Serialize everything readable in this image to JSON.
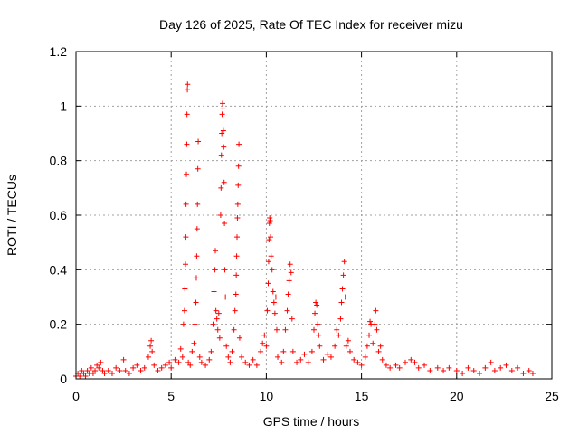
{
  "chart_data": {
    "type": "scatter",
    "title": "Day 126 of 2025, Rate Of TEC Index for receiver mizu",
    "xlabel": "GPS time / hours",
    "ylabel": "ROTI / TECUs",
    "xlim": [
      0,
      25
    ],
    "ylim": [
      0,
      1.2
    ],
    "x_ticks": [
      0,
      5,
      10,
      15,
      20,
      25
    ],
    "x_tick_labels": [
      "0",
      "5",
      "10",
      "15",
      "20",
      "25"
    ],
    "y_ticks": [
      0,
      0.2,
      0.4,
      0.6,
      0.8,
      1.0,
      1.2
    ],
    "y_tick_labels": [
      "0",
      "0.2",
      "0.4",
      "0.6",
      "0.8",
      "1",
      "1.2"
    ],
    "grid": true,
    "marker": "+",
    "marker_color": "#ff0000",
    "series": [
      {
        "points": [
          [
            0.0,
            0.01
          ],
          [
            0.1,
            0.02
          ],
          [
            0.2,
            0.01
          ],
          [
            0.3,
            0.03
          ],
          [
            0.4,
            0.02
          ],
          [
            0.5,
            0.01
          ],
          [
            0.6,
            0.03
          ],
          [
            0.7,
            0.02
          ],
          [
            0.8,
            0.04
          ],
          [
            0.9,
            0.02
          ],
          [
            1.0,
            0.03
          ],
          [
            1.1,
            0.05
          ],
          [
            1.2,
            0.04
          ],
          [
            1.3,
            0.06
          ],
          [
            1.4,
            0.03
          ],
          [
            1.5,
            0.02
          ],
          [
            1.7,
            0.03
          ],
          [
            1.9,
            0.02
          ],
          [
            2.1,
            0.04
          ],
          [
            2.3,
            0.03
          ],
          [
            2.5,
            0.07
          ],
          [
            2.6,
            0.03
          ],
          [
            2.8,
            0.02
          ],
          [
            3.0,
            0.04
          ],
          [
            3.2,
            0.05
          ],
          [
            3.4,
            0.03
          ],
          [
            3.6,
            0.04
          ],
          [
            3.8,
            0.08
          ],
          [
            3.9,
            0.12
          ],
          [
            3.95,
            0.14
          ],
          [
            4.0,
            0.1
          ],
          [
            4.1,
            0.05
          ],
          [
            4.3,
            0.03
          ],
          [
            4.5,
            0.04
          ],
          [
            4.7,
            0.05
          ],
          [
            4.9,
            0.06
          ],
          [
            5.0,
            0.04
          ],
          [
            5.2,
            0.07
          ],
          [
            5.4,
            0.06
          ],
          [
            5.5,
            0.11
          ],
          [
            5.6,
            0.08
          ],
          [
            5.65,
            0.2
          ],
          [
            5.7,
            0.25
          ],
          [
            5.72,
            0.33
          ],
          [
            5.75,
            0.42
          ],
          [
            5.77,
            0.52
          ],
          [
            5.78,
            0.64
          ],
          [
            5.8,
            0.75
          ],
          [
            5.82,
            0.86
          ],
          [
            5.83,
            0.97
          ],
          [
            5.85,
            1.06
          ],
          [
            5.86,
            1.08
          ],
          [
            5.9,
            0.06
          ],
          [
            6.0,
            0.05
          ],
          [
            6.1,
            0.1
          ],
          [
            6.2,
            0.13
          ],
          [
            6.25,
            0.2
          ],
          [
            6.3,
            0.28
          ],
          [
            6.32,
            0.37
          ],
          [
            6.34,
            0.45
          ],
          [
            6.36,
            0.55
          ],
          [
            6.38,
            0.64
          ],
          [
            6.4,
            0.77
          ],
          [
            6.42,
            0.87
          ],
          [
            6.5,
            0.08
          ],
          [
            6.6,
            0.06
          ],
          [
            6.8,
            0.05
          ],
          [
            7.0,
            0.07
          ],
          [
            7.1,
            0.1
          ],
          [
            7.2,
            0.2
          ],
          [
            7.25,
            0.32
          ],
          [
            7.3,
            0.4
          ],
          [
            7.32,
            0.47
          ],
          [
            7.35,
            0.25
          ],
          [
            7.4,
            0.22
          ],
          [
            7.45,
            0.18
          ],
          [
            7.5,
            0.24
          ],
          [
            7.55,
            0.15
          ],
          [
            7.6,
            0.6
          ],
          [
            7.62,
            0.7
          ],
          [
            7.64,
            0.82
          ],
          [
            7.66,
            0.9
          ],
          [
            7.68,
            0.97
          ],
          [
            7.7,
            1.01
          ],
          [
            7.72,
            0.99
          ],
          [
            7.74,
            0.91
          ],
          [
            7.76,
            0.85
          ],
          [
            7.78,
            0.72
          ],
          [
            7.8,
            0.57
          ],
          [
            7.82,
            0.4
          ],
          [
            7.85,
            0.3
          ],
          [
            7.9,
            0.12
          ],
          [
            8.0,
            0.08
          ],
          [
            8.1,
            0.06
          ],
          [
            8.2,
            0.1
          ],
          [
            8.3,
            0.18
          ],
          [
            8.35,
            0.25
          ],
          [
            8.4,
            0.31
          ],
          [
            8.42,
            0.38
          ],
          [
            8.44,
            0.45
          ],
          [
            8.46,
            0.52
          ],
          [
            8.48,
            0.59
          ],
          [
            8.5,
            0.64
          ],
          [
            8.52,
            0.71
          ],
          [
            8.54,
            0.78
          ],
          [
            8.56,
            0.86
          ],
          [
            8.6,
            0.15
          ],
          [
            8.7,
            0.08
          ],
          [
            8.9,
            0.06
          ],
          [
            9.1,
            0.05
          ],
          [
            9.3,
            0.07
          ],
          [
            9.5,
            0.05
          ],
          [
            9.7,
            0.1
          ],
          [
            9.8,
            0.13
          ],
          [
            9.9,
            0.16
          ],
          [
            10.0,
            0.12
          ],
          [
            10.05,
            0.25
          ],
          [
            10.1,
            0.35
          ],
          [
            10.12,
            0.43
          ],
          [
            10.14,
            0.51
          ],
          [
            10.16,
            0.57
          ],
          [
            10.18,
            0.59
          ],
          [
            10.2,
            0.58
          ],
          [
            10.22,
            0.52
          ],
          [
            10.25,
            0.45
          ],
          [
            10.3,
            0.4
          ],
          [
            10.35,
            0.32
          ],
          [
            10.4,
            0.28
          ],
          [
            10.45,
            0.24
          ],
          [
            10.5,
            0.3
          ],
          [
            10.55,
            0.18
          ],
          [
            10.6,
            0.08
          ],
          [
            10.8,
            0.06
          ],
          [
            10.9,
            0.1
          ],
          [
            11.0,
            0.18
          ],
          [
            11.1,
            0.25
          ],
          [
            11.15,
            0.31
          ],
          [
            11.2,
            0.36
          ],
          [
            11.25,
            0.42
          ],
          [
            11.3,
            0.39
          ],
          [
            11.35,
            0.22
          ],
          [
            11.4,
            0.1
          ],
          [
            11.6,
            0.06
          ],
          [
            11.8,
            0.07
          ],
          [
            12.0,
            0.09
          ],
          [
            12.2,
            0.06
          ],
          [
            12.4,
            0.1
          ],
          [
            12.5,
            0.18
          ],
          [
            12.55,
            0.24
          ],
          [
            12.6,
            0.28
          ],
          [
            12.65,
            0.27
          ],
          [
            12.7,
            0.2
          ],
          [
            12.75,
            0.16
          ],
          [
            12.8,
            0.12
          ],
          [
            13.0,
            0.07
          ],
          [
            13.2,
            0.09
          ],
          [
            13.4,
            0.08
          ],
          [
            13.6,
            0.12
          ],
          [
            13.7,
            0.18
          ],
          [
            13.8,
            0.16
          ],
          [
            13.9,
            0.22
          ],
          [
            13.95,
            0.28
          ],
          [
            14.0,
            0.33
          ],
          [
            14.05,
            0.38
          ],
          [
            14.1,
            0.43
          ],
          [
            14.15,
            0.3
          ],
          [
            14.2,
            0.12
          ],
          [
            14.3,
            0.14
          ],
          [
            14.4,
            0.1
          ],
          [
            14.6,
            0.07
          ],
          [
            14.8,
            0.06
          ],
          [
            15.0,
            0.05
          ],
          [
            15.2,
            0.08
          ],
          [
            15.3,
            0.12
          ],
          [
            15.4,
            0.16
          ],
          [
            15.45,
            0.21
          ],
          [
            15.5,
            0.2
          ],
          [
            15.6,
            0.13
          ],
          [
            15.7,
            0.2
          ],
          [
            15.75,
            0.25
          ],
          [
            15.8,
            0.18
          ],
          [
            15.9,
            0.1
          ],
          [
            16.0,
            0.12
          ],
          [
            16.1,
            0.07
          ],
          [
            16.3,
            0.05
          ],
          [
            16.5,
            0.04
          ],
          [
            16.8,
            0.05
          ],
          [
            17.0,
            0.04
          ],
          [
            17.3,
            0.06
          ],
          [
            17.6,
            0.07
          ],
          [
            17.8,
            0.06
          ],
          [
            18.0,
            0.04
          ],
          [
            18.3,
            0.05
          ],
          [
            18.6,
            0.03
          ],
          [
            19.0,
            0.04
          ],
          [
            19.3,
            0.03
          ],
          [
            19.6,
            0.04
          ],
          [
            20.0,
            0.03
          ],
          [
            20.3,
            0.02
          ],
          [
            20.6,
            0.04
          ],
          [
            20.9,
            0.03
          ],
          [
            21.2,
            0.02
          ],
          [
            21.5,
            0.04
          ],
          [
            21.8,
            0.06
          ],
          [
            22.0,
            0.03
          ],
          [
            22.3,
            0.04
          ],
          [
            22.6,
            0.05
          ],
          [
            22.9,
            0.03
          ],
          [
            23.2,
            0.04
          ],
          [
            23.5,
            0.02
          ],
          [
            23.8,
            0.03
          ],
          [
            24.0,
            0.02
          ]
        ]
      }
    ]
  }
}
